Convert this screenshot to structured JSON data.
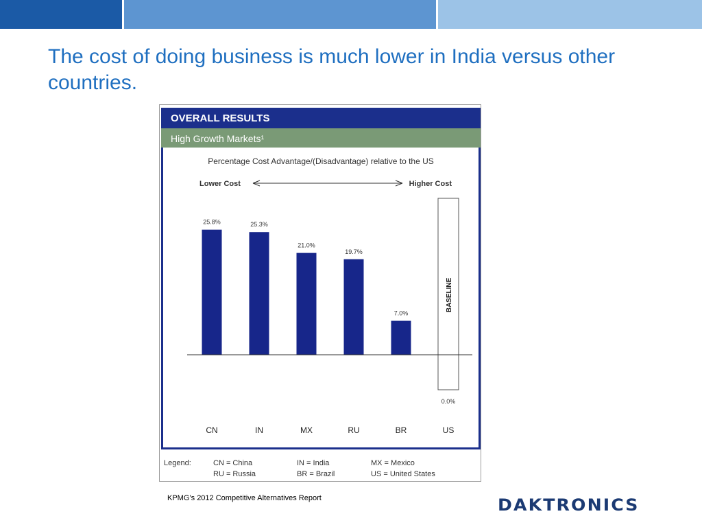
{
  "slide": {
    "title": "The cost of doing business is much lower in India versus other countries.",
    "source": "KPMG’s 2012 Competitive Alternatives Report",
    "logo": "DAKTRONICS",
    "colors": {
      "title": "#1f6fc0",
      "bar": "#17268a",
      "header": "#1b2f8c",
      "subheader": "#7a9a76"
    }
  },
  "figure": {
    "header": "OVERALL RESULTS",
    "subheader": "High Growth Markets¹",
    "legend": {
      "label": "Legend:",
      "entries": [
        "CN = China",
        "IN = India",
        "MX = Mexico",
        "RU = Russia",
        "BR = Brazil",
        "US = United States"
      ]
    }
  },
  "chart_data": {
    "type": "bar",
    "title": "Percentage Cost Advantage/(Disadvantage) relative to the US",
    "direction_left": "Lower Cost",
    "direction_right": "Higher Cost",
    "categories": [
      "CN",
      "IN",
      "MX",
      "RU",
      "BR",
      "US"
    ],
    "values": [
      25.8,
      25.3,
      21.0,
      19.7,
      7.0,
      0.0
    ],
    "data_labels": [
      "25.8%",
      "25.3%",
      "21.0%",
      "19.7%",
      "7.0%",
      "0.0%"
    ],
    "baseline_label": "BASELINE",
    "baseline_category": "US",
    "ylim": [
      0,
      30
    ],
    "grid": false,
    "legend": "bottom"
  }
}
